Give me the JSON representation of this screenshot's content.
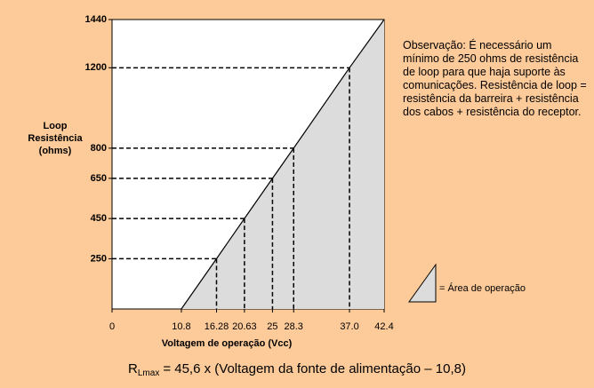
{
  "chart_data": {
    "type": "line",
    "x_label": "Voltagem de operação (Vcc)",
    "y_label": "Loop Resistência (ohms)",
    "x": [
      10.8,
      16.28,
      20.63,
      25,
      28.3,
      37.0,
      42.4
    ],
    "series": [
      {
        "color": "#000000",
        "values": [
          0,
          250,
          450,
          650,
          800,
          1200,
          1440
        ]
      }
    ],
    "area_color": "#dcdcdc",
    "xlim": [
      0,
      42.4
    ],
    "ylim": [
      0,
      1440
    ],
    "xticks": [
      0,
      10.8,
      16.28,
      20.63,
      25,
      28.3,
      {
        "value": 37.0,
        "label": "37.0"
      },
      42.4
    ],
    "yticks": [
      250,
      450,
      650,
      800,
      1200,
      1440
    ],
    "note": "Observação: É necessário um mínimo de 250 ohms de resistência de loop para que haja suporte às comunicações. Resistência de loop = resistência da barreira + resistência dos cabos + resistência do receptor.",
    "legend_label": "= Área de operação",
    "formula": {
      "symbol": "R",
      "subscript": "Lmax",
      "text": "= 45,6 x (Voltagem da fonte de alimentação – 10,8)"
    }
  }
}
